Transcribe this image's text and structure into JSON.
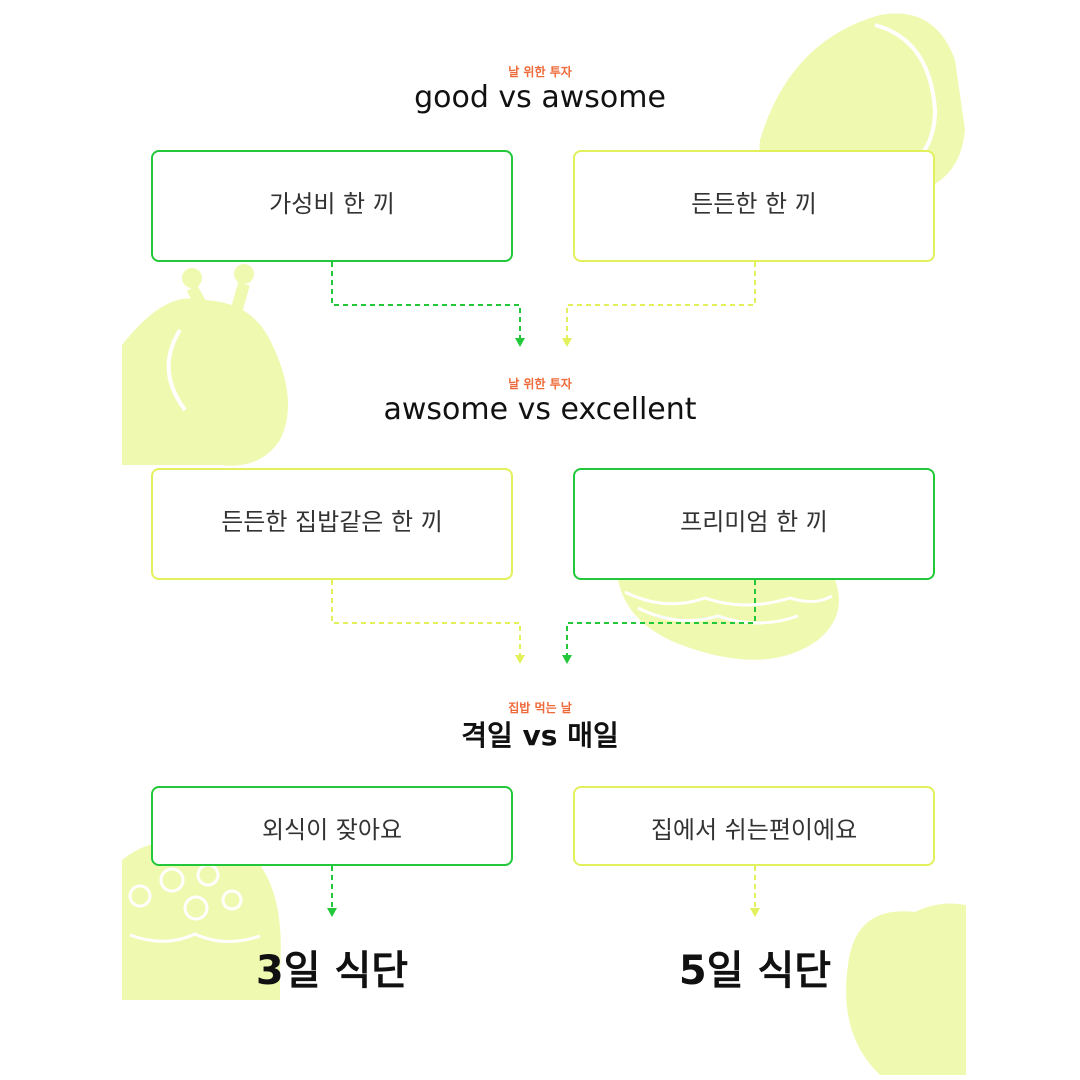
{
  "colors": {
    "accent_green": "#22c83a",
    "accent_yellow": "#e2f05c",
    "subtitle_orange": "#ef6a3a",
    "background_art": "#f0f9b0"
  },
  "sections": [
    {
      "subtitle": "날 위한 투자",
      "heading": "good  vs  awsome",
      "left_box": {
        "label": "가성비 한 끼"
      },
      "right_box": {
        "label": "든든한 한 끼"
      }
    },
    {
      "subtitle": "날 위한 투자",
      "heading": "awsome vs  excellent",
      "left_box": {
        "label": "든든한 집밥같은 한 끼"
      },
      "right_box": {
        "label": "프리미엄 한 끼"
      }
    },
    {
      "subtitle": "집밥 먹는 날",
      "heading": "격일 vs 매일",
      "left_box": {
        "label": "외식이 잦아요"
      },
      "right_box": {
        "label": "집에서 쉬는편이에요"
      }
    }
  ],
  "results": {
    "left": "3일 식단",
    "right": "5일 식단"
  },
  "background_icons": [
    "bread-icon",
    "chicken-icon",
    "sandwich-icon",
    "cake-icon",
    "apple-icon"
  ]
}
